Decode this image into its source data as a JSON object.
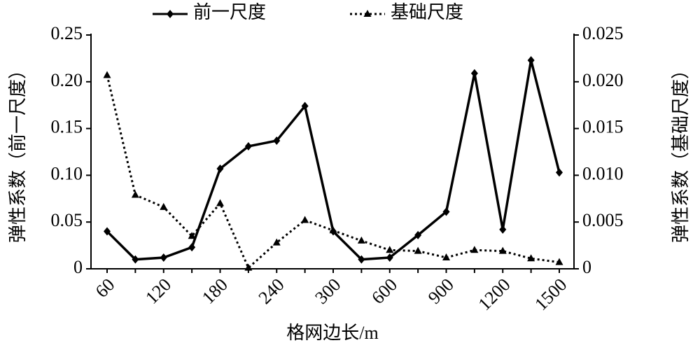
{
  "chart_data": {
    "type": "line",
    "x_label": "格网边长/m",
    "y_label": "弹性系数（前一尺度）",
    "y2_label": "弹性系数（基础尺度）",
    "categories": [
      "60",
      null,
      "120",
      null,
      "180",
      null,
      "240",
      null,
      "300",
      null,
      "600",
      null,
      "900",
      null,
      "1200",
      null,
      "1500"
    ],
    "series": [
      {
        "name": "前一尺度",
        "color": "#000000",
        "marker": "diamond",
        "dash": "solid",
        "values": [
          0.04,
          0.01,
          0.012,
          0.023,
          0.107,
          0.131,
          0.137,
          0.174,
          0.04,
          0.01,
          0.012,
          0.036,
          0.061,
          0.209,
          0.042,
          0.223,
          0.103
        ]
      },
      {
        "name": "基础尺度",
        "color": "#000000",
        "marker": "triangle",
        "dash": "dotted",
        "axis": "y2",
        "values": [
          0.0207,
          0.0079,
          0.0066,
          0.0035,
          0.007,
          0.0001,
          0.0028,
          0.0052,
          0.0041,
          0.003,
          0.002,
          0.0019,
          0.0012,
          0.002,
          0.0019,
          0.0011,
          0.0007
        ]
      }
    ],
    "ylim": [
      0,
      0.25
    ],
    "yticks": [
      0,
      0.05,
      {
        "value": 0.1,
        "label": "0.10"
      },
      0.15,
      {
        "value": 0.2,
        "label": "0.20"
      },
      0.25
    ],
    "y2lim": [
      0,
      0.025
    ],
    "y2ticks": [
      0,
      0.005,
      {
        "value": 0.01,
        "label": "0.010"
      },
      0.015,
      {
        "value": 0.02,
        "label": "0.020"
      },
      0.025
    ],
    "legend": "top"
  }
}
